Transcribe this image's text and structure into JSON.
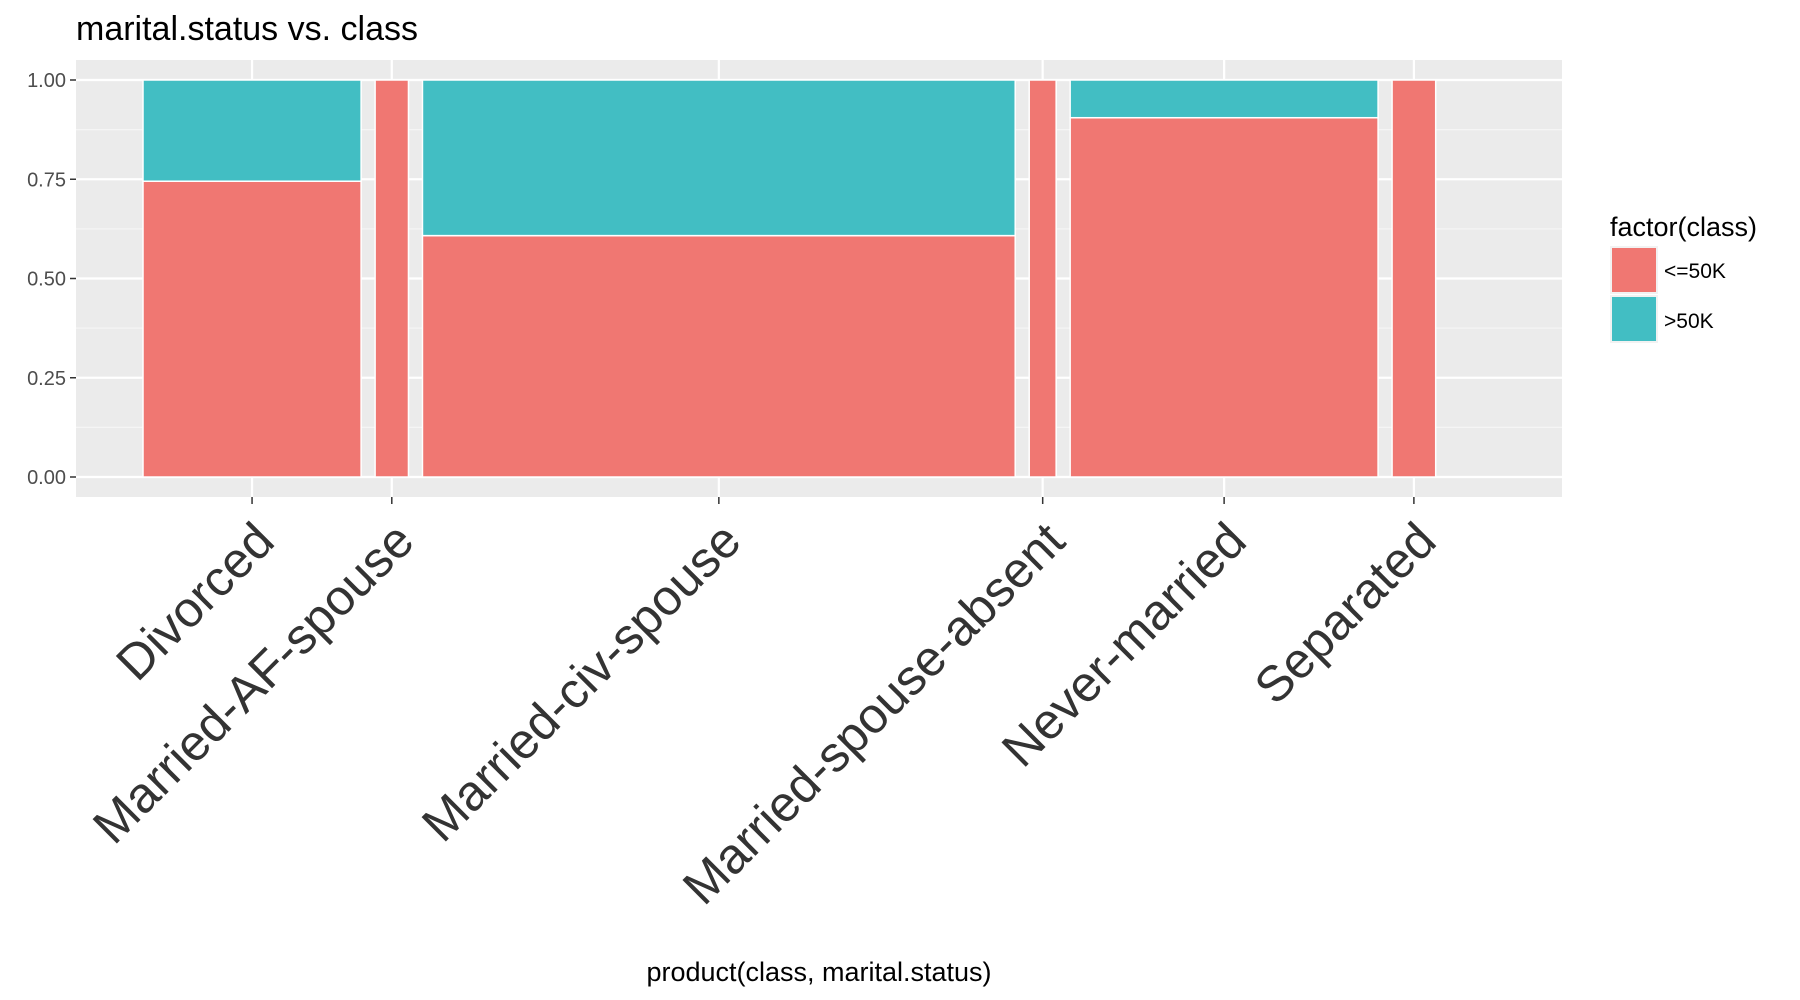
{
  "chart_data": {
    "type": "mosaic",
    "title": "marital.status vs. class",
    "xlabel": "product(class, marital.status)",
    "ylabel": "",
    "ylim": [
      0,
      1
    ],
    "yticks": [
      "0.00",
      "0.25",
      "0.50",
      "0.75",
      "1.00"
    ],
    "grid": true,
    "legend_title": "factor(class)",
    "legend_position": "right",
    "series": [
      {
        "name": "<=50K",
        "color": "#f07772"
      },
      {
        "name": ">50K",
        "color": "#42bec3"
      }
    ],
    "categories": [
      "Divorced",
      "Married-AF-spouse",
      "Married-civ-spouse",
      "Married-spouse-absent",
      "Never-married",
      "Separated"
    ],
    "width_share": [
      0.17,
      0.026,
      0.462,
      0.021,
      0.24,
      0.034
    ],
    "values_le50k": [
      0.745,
      1.0,
      0.608,
      1.0,
      0.905,
      1.0
    ],
    "values_gt50k": [
      0.255,
      0.0,
      0.392,
      0.0,
      0.095,
      0.0
    ]
  }
}
